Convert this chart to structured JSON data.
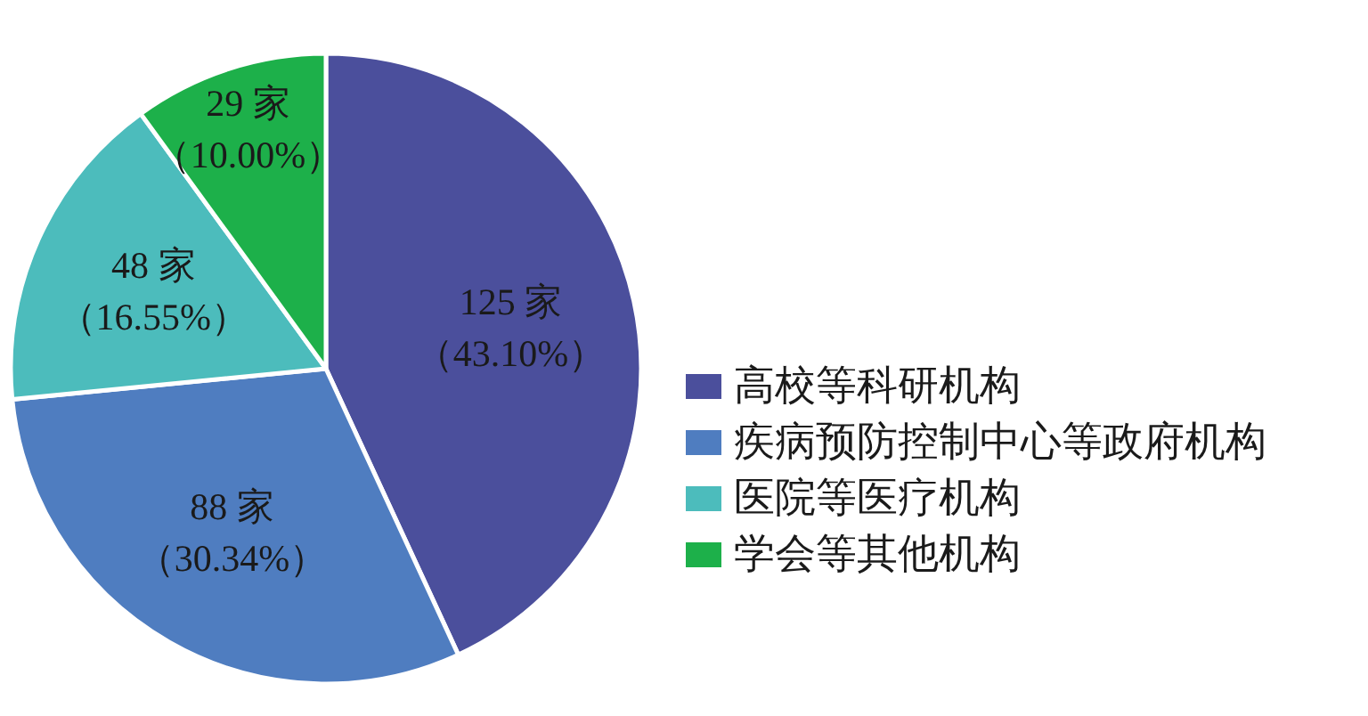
{
  "chart_data": {
    "type": "pie",
    "categories": [
      "高校等科研机构",
      "疾病预防控制中心等政府机构",
      "医院等医疗机构",
      "学会等其他机构"
    ],
    "values": [
      125,
      88,
      48,
      29
    ],
    "colors": [
      "#4b4f9c",
      "#4f7dc0",
      "#4cbcbc",
      "#1db04a"
    ],
    "value_labels": [
      "125 家（43.10%）",
      "88 家（30.34%）",
      "48 家（16.55%）",
      "29 家（10.00%）"
    ],
    "legend": "right"
  }
}
